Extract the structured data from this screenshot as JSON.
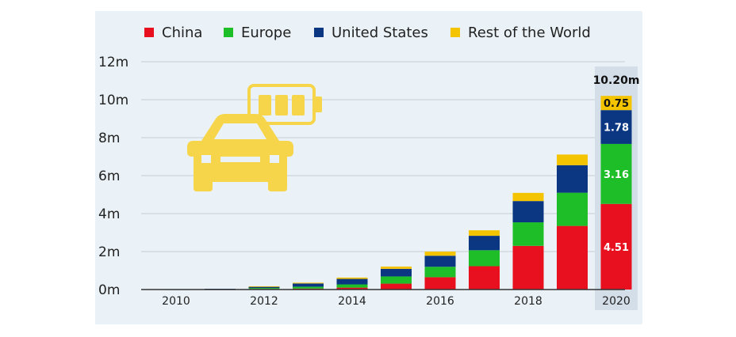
{
  "chart_data": {
    "type": "bar",
    "stacked": true,
    "categories": [
      "2010",
      "2011",
      "2012",
      "2013",
      "2014",
      "2015",
      "2016",
      "2017",
      "2018",
      "2019",
      "2020"
    ],
    "x_tick_labels": [
      "2010",
      "2012",
      "2014",
      "2016",
      "2018",
      "2020"
    ],
    "series": [
      {
        "name": "China",
        "color": "#e8101f",
        "values": [
          0.0,
          0.01,
          0.03,
          0.05,
          0.1,
          0.31,
          0.65,
          1.23,
          2.3,
          3.35,
          4.51
        ]
      },
      {
        "name": "Europe",
        "color": "#1dbe28",
        "values": [
          0.01,
          0.02,
          0.05,
          0.1,
          0.17,
          0.38,
          0.55,
          0.84,
          1.24,
          1.75,
          3.16
        ]
      },
      {
        "name": "United States",
        "color": "#0a3682",
        "values": [
          0.0,
          0.01,
          0.07,
          0.17,
          0.29,
          0.4,
          0.58,
          0.76,
          1.12,
          1.45,
          1.78
        ]
      },
      {
        "name": "Rest of the World",
        "color": "#f5c400",
        "values": [
          0.0,
          0.0,
          0.02,
          0.04,
          0.07,
          0.12,
          0.22,
          0.29,
          0.43,
          0.56,
          0.75
        ]
      }
    ],
    "y_ticks": [
      "0m",
      "2m",
      "4m",
      "6m",
      "8m",
      "10m",
      "12m"
    ],
    "ylim": [
      0,
      12
    ],
    "grid": true,
    "legend_position": "top",
    "highlight_category": "2020",
    "data_labels_2020": [
      "4.51",
      "3.16",
      "1.78",
      "0.75"
    ],
    "total_label_2020": "10.20m"
  },
  "icons": {
    "illustration": "electric-car-battery-icon",
    "illustration_color": "#f7d54a"
  }
}
